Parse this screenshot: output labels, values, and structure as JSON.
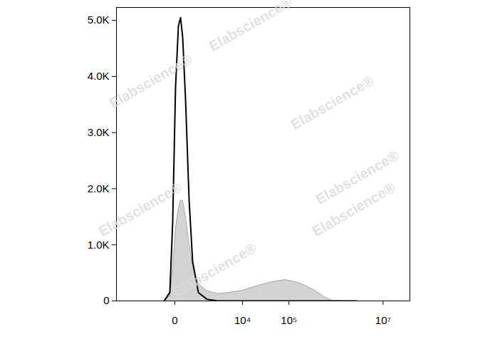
{
  "chart_data": {
    "type": "area",
    "log": "x",
    "x": [
      -260,
      -105,
      -42,
      13,
      72,
      122,
      177,
      260,
      382,
      526,
      818,
      1439,
      2687,
      4791,
      10000,
      20466,
      41460,
      83600,
      168300,
      338000,
      570000,
      809000,
      1362000,
      2734000
    ],
    "series": [
      {
        "type": "area",
        "color": "#d3d3d3",
        "values": [
          0,
          100,
          600,
          1300,
          1650,
          1800,
          1780,
          1500,
          1000,
          600,
          300,
          180,
          130,
          150,
          190,
          270,
          340,
          380,
          320,
          200,
          70,
          10,
          0,
          0
        ]
      },
      {
        "type": "line",
        "color": "#000000",
        "values": [
          0,
          150,
          1400,
          3800,
          4900,
          5050,
          4700,
          3600,
          1800,
          700,
          150,
          30,
          0,
          0,
          0,
          0,
          0,
          0,
          0,
          0,
          0,
          0,
          0,
          0
        ]
      }
    ],
    "xlim": [
      -6200,
      37000000
    ],
    "xticks": [
      0,
      {
        "value": 10000,
        "label": "10⁴"
      },
      {
        "value": 100000,
        "label": "10⁵"
      },
      {
        "value": 10000000,
        "label": "10⁷"
      }
    ],
    "ylim": [
      0,
      5230
    ],
    "yticks": [
      0,
      {
        "value": 1000,
        "label": "1.0K"
      },
      {
        "value": 2000,
        "label": "2.0K"
      },
      {
        "value": 3000,
        "label": "3.0K"
      },
      {
        "value": 4000,
        "label": "4.0K"
      },
      {
        "value": 5000,
        "label": "5.0K"
      }
    ],
    "annotations": [
      "Elabscience®",
      "Elabscience®",
      "Elabscience®",
      "Elabscience®",
      "Elabscience®",
      "Elabscience®",
      "Elabscience®"
    ]
  }
}
